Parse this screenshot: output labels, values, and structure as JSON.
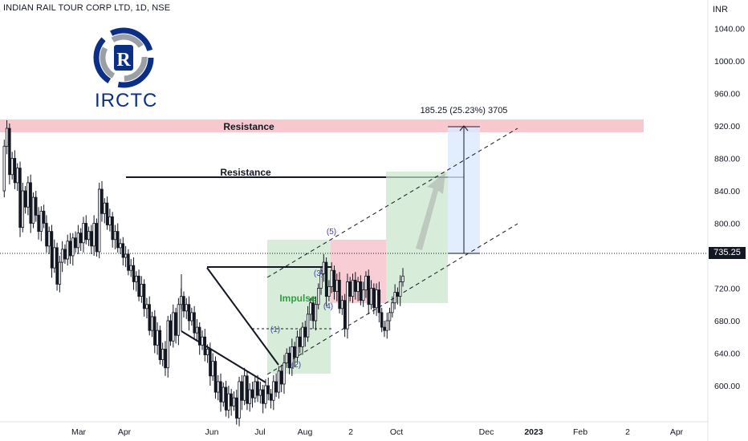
{
  "header": {
    "title": "INDIAN RAIL TOUR CORP LTD, 1D, NSE"
  },
  "logo": {
    "text": "IRCTC"
  },
  "axis": {
    "unit": "INR",
    "current_price": "735.25"
  },
  "colors": {
    "candle_up": "#131722",
    "candle_down": "#131722",
    "resistance_zone": "#f8c8cf",
    "green_box": "#c8e6c9",
    "red_box": "#f7c6cc",
    "projection_box": "#dbeafe",
    "wave_label": "#3f3fa8",
    "impulse_label": "#2e9e3e",
    "logo_blue": "#0b2e87"
  },
  "chart_data": {
    "type": "candlestick",
    "title": "INDIAN RAIL TOUR CORP LTD, 1D, NSE",
    "ylabel": "INR",
    "ylim": [
      490,
      1080
    ],
    "y_ticks": [
      "520.00",
      "560.00",
      "600.00",
      "640.00",
      "680.00",
      "720.00",
      "760.00",
      "800.00",
      "840.00",
      "880.00",
      "920.00",
      "960.00",
      "1000.00",
      "1040.00",
      "1080.00"
    ],
    "x_ticks": [
      "Mar",
      "Apr",
      "Jun",
      "Jul",
      "Aug",
      "2",
      "Oct",
      "Dec",
      "2023",
      "Feb",
      "2",
      "Apr"
    ],
    "last_price": 735.25,
    "price_path": [
      840,
      895,
      917,
      860,
      880,
      850,
      868,
      795,
      840,
      820,
      850,
      800,
      832,
      810,
      790,
      815,
      800,
      772,
      790,
      745,
      770,
      725,
      752,
      768,
      756,
      778,
      760,
      782,
      770,
      788,
      776,
      800,
      780,
      790,
      772,
      800,
      765,
      842,
      812,
      825,
      798,
      808,
      780,
      790,
      770,
      775,
      758,
      762,
      742,
      748,
      728,
      735,
      710,
      725,
      695,
      700,
      668,
      685,
      650,
      668,
      632,
      645,
      622,
      680,
      655,
      690,
      662,
      700,
      710,
      692,
      700,
      680,
      690,
      665,
      672,
      650,
      660,
      638,
      645,
      612,
      630,
      592,
      605,
      580,
      598,
      570,
      590,
      575,
      585,
      560,
      605,
      582,
      612,
      578,
      595,
      585,
      605,
      588,
      595,
      578,
      600,
      590,
      582,
      605,
      592,
      618,
      602,
      628,
      640,
      622,
      648,
      635,
      660,
      648,
      672,
      660,
      688,
      702,
      680,
      700,
      720,
      738,
      752,
      710,
      722,
      742,
      716,
      730,
      695,
      705,
      670,
      728,
      710,
      730,
      716,
      728,
      705,
      718,
      735,
      700,
      720,
      696,
      718,
      690,
      672,
      668,
      680,
      690,
      702,
      715,
      710,
      728,
      735
    ],
    "annotations": {
      "resistance_labels": [
        "Resistance",
        "Resistance"
      ],
      "wave_labels": [
        "(1)",
        "(2)",
        "(3)",
        "(4)",
        "(5)"
      ],
      "impulse_label": "Impulse",
      "measure_label": "185.25 (25.23%) 3705"
    },
    "grid": false
  }
}
